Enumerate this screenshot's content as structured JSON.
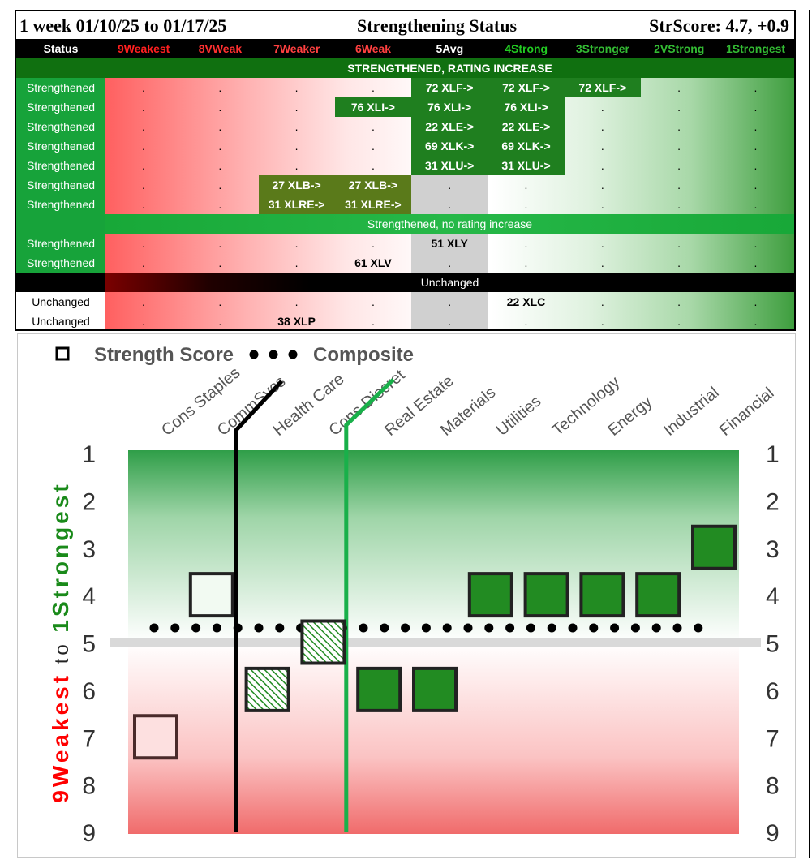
{
  "status_table": {
    "title_left": "1 week 01/10/25 to 01/17/25",
    "title_center": "Strengthening Status",
    "title_right": "StrScore: 4.7, +0.9",
    "status_header": "Status",
    "columns": [
      {
        "label": "9Weakest",
        "color": "#ff2020"
      },
      {
        "label": "8VWeak",
        "color": "#ff3030"
      },
      {
        "label": "7Weaker",
        "color": "#ff4040"
      },
      {
        "label": "6Weak",
        "color": "#ff4040"
      },
      {
        "label": "5Avg",
        "color": "#ffffff"
      },
      {
        "label": "4Strong",
        "color": "#22cc22"
      },
      {
        "label": "3Stronger",
        "color": "#33bb33"
      },
      {
        "label": "2VStrong",
        "color": "#33bb33"
      },
      {
        "label": "1Strongest",
        "color": "#33bb33"
      }
    ],
    "sections": [
      {
        "title": "STRENGTHENED, RATING INCREASE",
        "style": "dark",
        "rows": [
          {
            "status": "Strengthened",
            "cells": [
              ".",
              ".",
              ".",
              ".",
              "72 XLF->",
              "72 XLF->",
              "72 XLF->",
              ".",
              "."
            ],
            "hl": [
              4,
              5,
              6
            ],
            "olive": []
          },
          {
            "status": "Strengthened",
            "cells": [
              ".",
              ".",
              ".",
              "76 XLI->",
              "76 XLI->",
              "76 XLI->",
              ".",
              ".",
              "."
            ],
            "hl": [
              3,
              4,
              5
            ],
            "olive": []
          },
          {
            "status": "Strengthened",
            "cells": [
              ".",
              ".",
              ".",
              ".",
              "22 XLE->",
              "22 XLE->",
              ".",
              ".",
              "."
            ],
            "hl": [
              4,
              5
            ],
            "olive": []
          },
          {
            "status": "Strengthened",
            "cells": [
              ".",
              ".",
              ".",
              ".",
              "69 XLK->",
              "69 XLK->",
              ".",
              ".",
              "."
            ],
            "hl": [
              4,
              5
            ],
            "olive": []
          },
          {
            "status": "Strengthened",
            "cells": [
              ".",
              ".",
              ".",
              ".",
              "31 XLU->",
              "31 XLU->",
              ".",
              ".",
              "."
            ],
            "hl": [
              4,
              5
            ],
            "olive": []
          },
          {
            "status": "Strengthened",
            "cells": [
              ".",
              ".",
              "27 XLB->",
              "27 XLB->",
              ".",
              ".",
              ".",
              ".",
              "."
            ],
            "hl": [],
            "olive": [
              2,
              3
            ],
            "avg": true
          },
          {
            "status": "Strengthened",
            "cells": [
              ".",
              ".",
              "31 XLRE->",
              "31 XLRE->",
              ".",
              ".",
              ".",
              ".",
              "."
            ],
            "hl": [],
            "olive": [
              2,
              3
            ],
            "avg": true
          }
        ]
      },
      {
        "title": "Strengthened, no rating increase",
        "style": "green",
        "rows": [
          {
            "status": "Strengthened",
            "cells": [
              ".",
              ".",
              ".",
              ".",
              "51 XLY",
              ".",
              ".",
              ".",
              "."
            ],
            "hl": [],
            "olive": [],
            "avg": true
          },
          {
            "status": "Strengthened",
            "cells": [
              ".",
              ".",
              ".",
              "61 XLV",
              ".",
              ".",
              ".",
              ".",
              "."
            ],
            "hl": [],
            "olive": [],
            "avg": true
          }
        ]
      },
      {
        "title": "Unchanged",
        "style": "black",
        "rows": [
          {
            "status": "Unchanged",
            "cells": [
              ".",
              ".",
              ".",
              ".",
              ".",
              "22 XLC",
              ".",
              ".",
              "."
            ],
            "hl": [],
            "olive": [],
            "avg": true
          },
          {
            "status": "Unchanged",
            "cells": [
              ".",
              ".",
              "38 XLP",
              ".",
              ".",
              ".",
              ".",
              ".",
              "."
            ],
            "hl": [],
            "olive": [],
            "avg": true
          }
        ]
      }
    ]
  },
  "chart_data": {
    "type": "scatter",
    "legend": {
      "marker_label": "Strength Score",
      "dots_label": "Composite",
      "placement": "top-left"
    },
    "ylabel_parts": [
      {
        "text": "9Weakest",
        "color": "#ff0000"
      },
      {
        "text": " to ",
        "color": "#222222"
      },
      {
        "text": "1Strongest",
        "color": "#1a8a1a"
      }
    ],
    "ylim": [
      1,
      9
    ],
    "y_inverted": true,
    "yticks": [
      1,
      2,
      3,
      4,
      5,
      6,
      7,
      8,
      9
    ],
    "categories": [
      "Cons Staples",
      "CommSvcs",
      "Health Care",
      "Cons Discret",
      "Real Estate",
      "Materials",
      "Utilities",
      "Technology",
      "Energy",
      "Industrial",
      "Financial"
    ],
    "values": [
      7,
      4,
      6,
      5,
      6,
      6,
      4,
      4,
      4,
      4,
      3
    ],
    "marker_styles": [
      "light-red",
      "light-green",
      "hatched",
      "hatched",
      "solid-green",
      "solid-green",
      "solid-green",
      "solid-green",
      "solid-green",
      "solid-green",
      "solid-green"
    ],
    "composite": 4.7,
    "average_line": 5,
    "colors": {
      "solid": "#228b22",
      "light_red": "#fde0e0",
      "light_green": "#f2faf2",
      "black_line": "#000000",
      "green_line": "#19b04a"
    }
  }
}
